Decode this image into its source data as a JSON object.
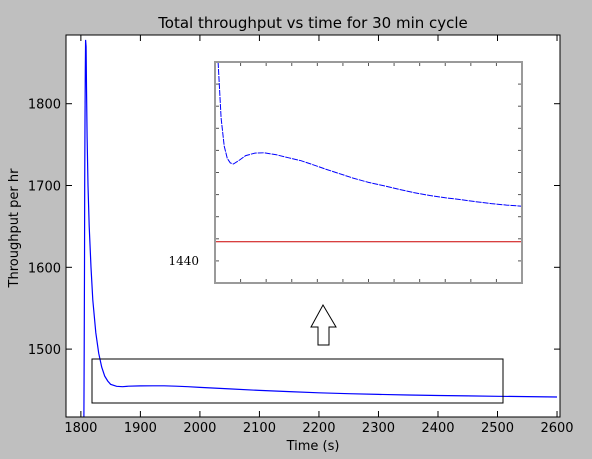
{
  "chart_data": [
    {
      "type": "line",
      "title": "Total throughput vs time for 30 min cycle",
      "xlabel": "Time (s)",
      "ylabel": "Throughput per hr",
      "xlim": [
        1775,
        2605
      ],
      "ylim": [
        1417,
        1884
      ],
      "x_ticks": [
        1800,
        1900,
        2000,
        2100,
        2200,
        2300,
        2400,
        2500,
        2600
      ],
      "y_ticks": [
        1500,
        1600,
        1700,
        1800
      ],
      "grid": false,
      "colors": {
        "line": "#0000ff"
      },
      "series": [
        {
          "x": [
            1805,
            1805.5,
            1806,
            1806.5,
            1807,
            1807.5,
            1808,
            1808.7,
            1809.5,
            1810.5,
            1812,
            1814,
            1817,
            1820,
            1825,
            1830,
            1835,
            1840,
            1845,
            1850,
            1860,
            1870,
            1880,
            1900,
            1920,
            1940,
            1960,
            1980,
            2000,
            2050,
            2100,
            2150,
            2200,
            2250,
            2300,
            2350,
            2400,
            2450,
            2500,
            2550,
            2600
          ],
          "y": [
            1417,
            1500,
            1600,
            1700,
            1780,
            1840,
            1878,
            1870,
            1820,
            1760,
            1700,
            1650,
            1600,
            1560,
            1520,
            1495,
            1478,
            1467,
            1461,
            1457,
            1454.5,
            1454,
            1454.6,
            1455,
            1455.2,
            1455.1,
            1454.6,
            1454,
            1453.2,
            1451.4,
            1449.5,
            1448,
            1446.6,
            1445.5,
            1444.6,
            1443.9,
            1443.3,
            1442.8,
            1442.3,
            1441.9,
            1441.5
          ]
        }
      ]
    },
    {
      "type": "line",
      "title": "",
      "annotation": "1440",
      "grid": false,
      "colors": {
        "line": "#0000ff",
        "reference": "#cc0000"
      },
      "series": [
        {
          "x": [
            1,
            2,
            3,
            4,
            5,
            6,
            8,
            10,
            13,
            16,
            20,
            24,
            28,
            32,
            36,
            40,
            45,
            50,
            55,
            60,
            65,
            70,
            75,
            80,
            85,
            90,
            95,
            100
          ],
          "y": [
            100,
            62,
            43,
            34.5,
            31.5,
            30.8,
            33.5,
            36.5,
            38.2,
            38.4,
            37,
            35,
            33,
            30.2,
            27.3,
            24.6,
            21.2,
            18.3,
            16,
            13.5,
            11.2,
            9.4,
            7.8,
            6.6,
            5.2,
            3.9,
            2.9,
            2.1
          ]
        },
        {
          "name": "1440",
          "x": [
            0,
            100
          ],
          "y": [
            -22,
            -22
          ]
        }
      ]
    }
  ]
}
